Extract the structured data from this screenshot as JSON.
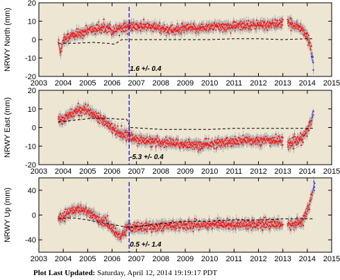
{
  "footer": {
    "label": "Plot Last Updated:",
    "value": "Saturday, April 12, 2014 19:19:17 PDT"
  },
  "colors": {
    "background": "#ede6d2",
    "points": "#ff0000",
    "error_bars": "#b4b4b4",
    "model_line": "#000000",
    "marker_line": "#0000c8",
    "recent_points": "#2222ff"
  },
  "chart_data": [
    {
      "type": "scatter",
      "ylabel": "NRWY North (mm)",
      "xlim": [
        2003,
        2015
      ],
      "ylim": [
        -20,
        20
      ],
      "xticks": [
        2003,
        2004,
        2005,
        2006,
        2007,
        2008,
        2009,
        2010,
        2011,
        2012,
        2013,
        2014,
        2015
      ],
      "yticks": [
        -20,
        -10,
        0,
        10,
        20
      ],
      "marker_year": 2006.7,
      "annotation": "1.6 +/- 0.4",
      "data_segments": [
        [
          [
            2003.8,
            -1
          ],
          [
            2003.9,
            -7
          ],
          [
            2004.0,
            0
          ],
          [
            2004.3,
            2
          ],
          [
            2004.7,
            3
          ],
          [
            2005.0,
            5
          ],
          [
            2005.5,
            6
          ],
          [
            2005.9,
            7
          ],
          [
            2006.0,
            4
          ],
          [
            2006.2,
            6
          ],
          [
            2006.5,
            7
          ],
          [
            2006.7,
            7
          ],
          [
            2007.0,
            7
          ],
          [
            2007.5,
            7
          ],
          [
            2008.0,
            6
          ],
          [
            2008.5,
            5
          ],
          [
            2009.0,
            6
          ],
          [
            2009.5,
            6
          ],
          [
            2010.0,
            7
          ],
          [
            2010.5,
            7
          ],
          [
            2011.0,
            7
          ],
          [
            2011.5,
            8
          ],
          [
            2012.0,
            8
          ],
          [
            2012.5,
            8
          ],
          [
            2013.0,
            9
          ]
        ],
        [
          [
            2013.2,
            9
          ],
          [
            2013.5,
            8
          ],
          [
            2013.8,
            6
          ],
          [
            2014.0,
            2
          ],
          [
            2014.15,
            -5
          ],
          [
            2014.25,
            -12
          ]
        ]
      ],
      "model_line": [
        [
          2003.8,
          -2
        ],
        [
          2004.5,
          -2
        ],
        [
          2005.2,
          -1.5
        ],
        [
          2005.8,
          -2
        ],
        [
          2006.1,
          -2.5
        ],
        [
          2006.4,
          0
        ],
        [
          2006.7,
          0
        ],
        [
          2008,
          0
        ],
        [
          2009,
          0
        ],
        [
          2010,
          0
        ],
        [
          2011,
          0.5
        ],
        [
          2012,
          0.5
        ],
        [
          2013,
          0
        ],
        [
          2014,
          0.5
        ],
        [
          2014.25,
          0.5
        ]
      ]
    },
    {
      "type": "scatter",
      "ylabel": "NRWY East (mm)",
      "xlim": [
        2003,
        2015
      ],
      "ylim": [
        -20,
        20
      ],
      "xticks": [
        2003,
        2004,
        2005,
        2006,
        2007,
        2008,
        2009,
        2010,
        2011,
        2012,
        2013,
        2014,
        2015
      ],
      "yticks": [
        -20,
        -10,
        0,
        10,
        20
      ],
      "marker_year": 2006.7,
      "annotation": "-5.3 +/- 0.4",
      "data_segments": [
        [
          [
            2003.8,
            4
          ],
          [
            2004.0,
            4
          ],
          [
            2004.3,
            7
          ],
          [
            2004.6,
            9
          ],
          [
            2004.9,
            10
          ],
          [
            2005.1,
            8
          ],
          [
            2005.4,
            6
          ],
          [
            2005.7,
            4
          ],
          [
            2006.0,
            0
          ],
          [
            2006.3,
            -3
          ],
          [
            2006.6,
            -4
          ],
          [
            2006.9,
            -6
          ],
          [
            2007.3,
            -7
          ],
          [
            2007.8,
            -8
          ],
          [
            2008.3,
            -8
          ],
          [
            2008.8,
            -9
          ],
          [
            2009.2,
            -9
          ],
          [
            2009.6,
            -10
          ],
          [
            2010.0,
            -9
          ],
          [
            2010.5,
            -8
          ],
          [
            2011.0,
            -8
          ],
          [
            2011.5,
            -7
          ],
          [
            2012.0,
            -7
          ],
          [
            2012.5,
            -7
          ],
          [
            2013.0,
            -7
          ]
        ],
        [
          [
            2013.2,
            -9
          ],
          [
            2013.5,
            -8
          ],
          [
            2013.8,
            -6
          ],
          [
            2014.0,
            -2
          ],
          [
            2014.15,
            3
          ],
          [
            2014.25,
            7
          ]
        ]
      ],
      "model_line": [
        [
          2003.8,
          3
        ],
        [
          2004.5,
          4
        ],
        [
          2005.2,
          5
        ],
        [
          2005.8,
          5
        ],
        [
          2006.3,
          4.5
        ],
        [
          2006.6,
          4.5
        ],
        [
          2006.75,
          0
        ],
        [
          2008,
          -1
        ],
        [
          2009,
          -1
        ],
        [
          2010,
          -1
        ],
        [
          2011,
          -0.5
        ],
        [
          2012,
          -0.5
        ],
        [
          2013,
          -0.5
        ],
        [
          2014,
          -0.5
        ],
        [
          2014.25,
          -0.5
        ]
      ]
    },
    {
      "type": "scatter",
      "ylabel": "NRWY Up (mm)",
      "xlim": [
        2003,
        2015
      ],
      "ylim": [
        -60,
        60
      ],
      "xticks": [
        2003,
        2004,
        2005,
        2006,
        2007,
        2008,
        2009,
        2010,
        2011,
        2012,
        2013,
        2014,
        2015
      ],
      "yticks": [
        -40,
        0,
        40
      ],
      "marker_year": 2006.7,
      "annotation": "0.5 +/- 1.4",
      "data_segments": [
        [
          [
            2003.8,
            -5
          ],
          [
            2004.0,
            -2
          ],
          [
            2004.3,
            5
          ],
          [
            2004.6,
            10
          ],
          [
            2004.9,
            8
          ],
          [
            2005.2,
            0
          ],
          [
            2005.5,
            -8
          ],
          [
            2005.8,
            -12
          ],
          [
            2006.0,
            -22
          ],
          [
            2006.2,
            -30
          ],
          [
            2006.4,
            -35
          ],
          [
            2006.6,
            -20
          ],
          [
            2006.8,
            -20
          ],
          [
            2007.2,
            -20
          ],
          [
            2007.6,
            -19
          ],
          [
            2008.0,
            -18
          ],
          [
            2008.5,
            -17
          ],
          [
            2009.0,
            -16
          ],
          [
            2009.5,
            -16
          ],
          [
            2010.0,
            -15
          ],
          [
            2010.5,
            -15
          ],
          [
            2011.0,
            -15
          ],
          [
            2011.5,
            -14
          ],
          [
            2012.0,
            -15
          ],
          [
            2012.5,
            -15
          ],
          [
            2013.0,
            -15
          ]
        ],
        [
          [
            2013.2,
            -16
          ],
          [
            2013.5,
            -15
          ],
          [
            2013.8,
            -10
          ],
          [
            2014.0,
            5
          ],
          [
            2014.15,
            25
          ],
          [
            2014.3,
            48
          ]
        ]
      ],
      "model_line": [
        [
          2003.8,
          -5
        ],
        [
          2004.5,
          -5
        ],
        [
          2005.0,
          -8
        ],
        [
          2005.5,
          -12
        ],
        [
          2006.0,
          -15
        ],
        [
          2006.4,
          -18
        ],
        [
          2006.7,
          -20
        ],
        [
          2008,
          -14
        ],
        [
          2009,
          -10
        ],
        [
          2010,
          -10
        ],
        [
          2011,
          -8
        ],
        [
          2012,
          -8
        ],
        [
          2013,
          -6
        ],
        [
          2014,
          -6
        ],
        [
          2014.25,
          -6
        ]
      ]
    }
  ]
}
